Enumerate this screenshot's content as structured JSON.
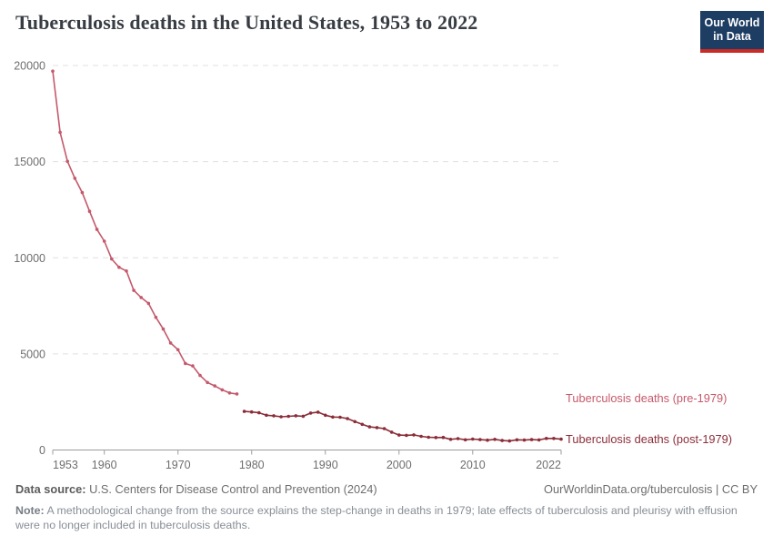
{
  "header": {
    "title": "Tuberculosis deaths in the United States, 1953 to 2022"
  },
  "logo": {
    "line1": "Our World",
    "line2": "in Data",
    "bg_color": "#1d3d63",
    "bar_color": "#cc2a24"
  },
  "chart_data": {
    "type": "line",
    "title": "Tuberculosis deaths in the United States, 1953 to 2022",
    "xlabel": "",
    "ylabel": "",
    "xlim": [
      1953,
      2022
    ],
    "ylim": [
      0,
      20000
    ],
    "grid": "horizontal-dashed",
    "legend_position": "right-of-plot",
    "xticks": [
      {
        "value": 1953,
        "label": "1953"
      },
      {
        "value": 1960,
        "label": "1960"
      },
      {
        "value": 1970,
        "label": "1970"
      },
      {
        "value": 1980,
        "label": "1980"
      },
      {
        "value": 1990,
        "label": "1990"
      },
      {
        "value": 2000,
        "label": "2000"
      },
      {
        "value": 2010,
        "label": "2010"
      },
      {
        "value": 2022,
        "label": "2022"
      }
    ],
    "yticks": [
      {
        "value": 0,
        "label": "0"
      },
      {
        "value": 5000,
        "label": "5000"
      },
      {
        "value": 10000,
        "label": "10000"
      },
      {
        "value": 15000,
        "label": "15000"
      },
      {
        "value": 20000,
        "label": "20000"
      }
    ],
    "series": [
      {
        "name": "Tuberculosis deaths (pre-1979)",
        "color": "#c4596b",
        "years": [
          1953,
          1954,
          1955,
          1956,
          1957,
          1958,
          1959,
          1960,
          1961,
          1962,
          1963,
          1964,
          1965,
          1966,
          1967,
          1968,
          1969,
          1970,
          1971,
          1972,
          1973,
          1974,
          1975,
          1976,
          1977,
          1978
        ],
        "values": [
          19707,
          16527,
          15016,
          14137,
          13390,
          12417,
          11474,
          10866,
          9938,
          9506,
          9311,
          8303,
          7934,
          7625,
          6901,
          6292,
          5567,
          5217,
          4501,
          4376,
          3875,
          3513,
          3333,
          3130,
          2968,
          2914
        ]
      },
      {
        "name": "Tuberculosis deaths (post-1979)",
        "color": "#8b2d39",
        "years": [
          1979,
          1980,
          1981,
          1982,
          1983,
          1984,
          1985,
          1986,
          1987,
          1988,
          1989,
          1990,
          1991,
          1992,
          1993,
          1994,
          1995,
          1996,
          1997,
          1998,
          1999,
          2000,
          2001,
          2002,
          2003,
          2004,
          2005,
          2006,
          2007,
          2008,
          2009,
          2010,
          2011,
          2012,
          2013,
          2014,
          2015,
          2016,
          2017,
          2018,
          2019,
          2020,
          2021,
          2022
        ],
        "values": [
          2007,
          1978,
          1937,
          1807,
          1779,
          1729,
          1752,
          1782,
          1755,
          1921,
          1970,
          1810,
          1713,
          1705,
          1631,
          1478,
          1336,
          1202,
          1166,
          1112,
          930,
          776,
          764,
          784,
          711,
          662,
          648,
          652,
          554,
          590,
          529,
          569,
          539,
          510,
          555,
          493,
          470,
          528,
          515,
          542,
          526,
          600,
          602,
          565
        ]
      }
    ]
  },
  "footer": {
    "source_label": "Data source:",
    "source_value": "U.S. Centers for Disease Control and Prevention (2024)",
    "cite": "OurWorldinData.org/tuberculosis | CC BY",
    "note_label": "Note:",
    "note_text": "A methodological change from the source explains the step-change in deaths in 1979; late effects of tuberculosis and pleurisy with effusion were no longer included in tuberculosis deaths."
  }
}
